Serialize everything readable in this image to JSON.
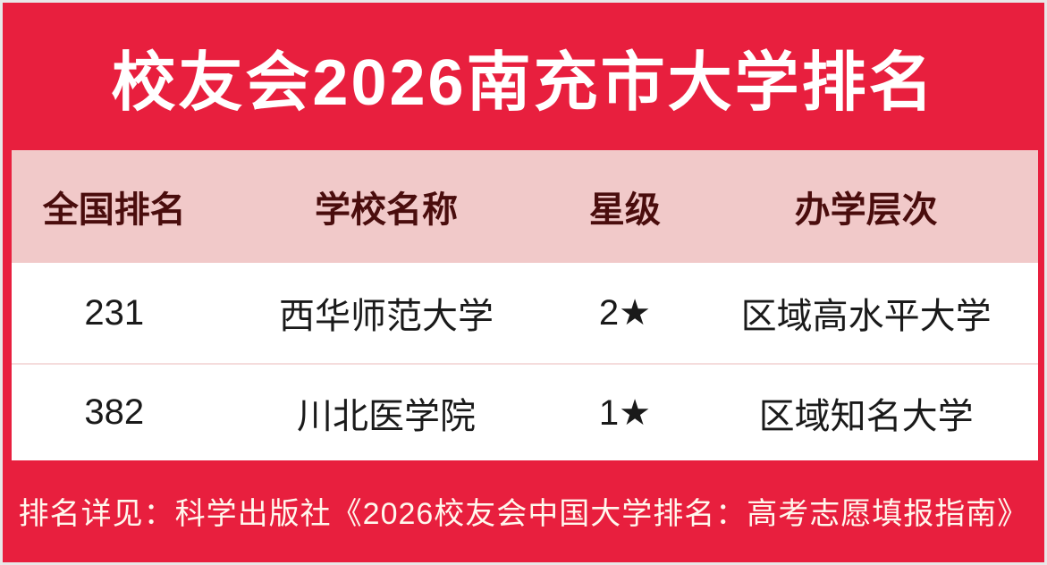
{
  "page": {
    "title": "校友会2026南充市大学排名",
    "footer_note": "排名详见：科学出版社《2026校友会中国大学排名：高考志愿填报指南》"
  },
  "colors": {
    "background_red": "#E81F3E",
    "outer_border_gray": "#E8E8E8",
    "header_pink": "#F1C9C9",
    "header_text_maroon": "#4A0D0D",
    "row_text_black": "#1A1A1A",
    "row_divider_pink": "#F5DCDC",
    "title_text_white": "#FFFFFF",
    "footer_text_cream": "#FFF7ED"
  },
  "table": {
    "headers": [
      "全国排名",
      "学校名称",
      "星级",
      "办学层次"
    ],
    "rows": [
      {
        "rank": "231",
        "school": "西华师范大学",
        "star": "2★",
        "level": "区域高水平大学"
      },
      {
        "rank": "382",
        "school": "川北医学院",
        "star": "1★",
        "level": "区域知名大学"
      }
    ]
  },
  "chart_data": {
    "type": "table",
    "title": "校友会2026南充市大学排名",
    "columns": [
      "全国排名",
      "学校名称",
      "星级",
      "办学层次"
    ],
    "rows": [
      [
        "231",
        "西华师范大学",
        "2★",
        "区域高水平大学"
      ],
      [
        "382",
        "川北医学院",
        "1★",
        "区域知名大学"
      ]
    ],
    "footnote": "排名详见：科学出版社《2026校友会中国大学排名：高考志愿填报指南》",
    "layout_hints": {
      "header_background": "#F1C9C9",
      "page_background": "#E81F3E",
      "column_alignment": "center"
    }
  }
}
